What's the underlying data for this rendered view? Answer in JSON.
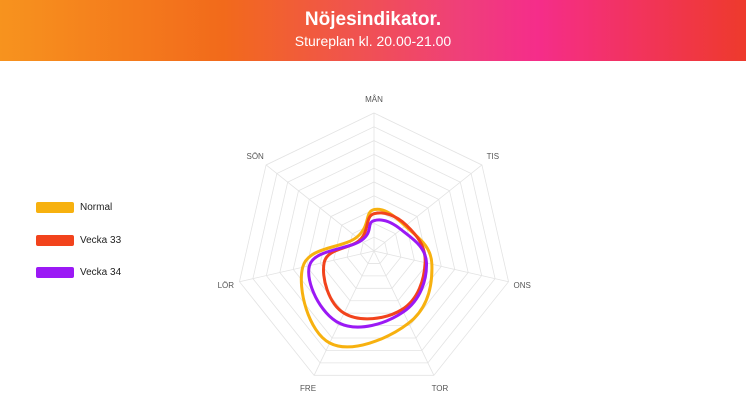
{
  "header": {
    "title": "Nöjesindikator.",
    "subtitle": "Stureplan kl. 20.00-21.00"
  },
  "colors": {
    "header_gradient": [
      "#f7931e",
      "#f26a1b",
      "#ef3f7a",
      "#f52d8a",
      "#ee3a2c"
    ],
    "grid": "#e3e3e3"
  },
  "chart_data": {
    "type": "radar",
    "title": "",
    "categories": [
      "MÅN",
      "TIS",
      "ONS",
      "TOR",
      "FRE",
      "LÖR",
      "SÖN"
    ],
    "rlim": [
      0,
      10
    ],
    "grid_rings": 10,
    "grid": true,
    "smooth": true,
    "legend_position": "left",
    "series": [
      {
        "name": "Normal",
        "color": "#f7b10f",
        "values": [
          3.0,
          2.9,
          4.3,
          5.8,
          7.4,
          5.3,
          1.6
        ]
      },
      {
        "name": "Vecka 33",
        "color": "#f2431c",
        "values": [
          2.7,
          3.0,
          3.8,
          4.7,
          5.0,
          3.7,
          1.3
        ]
      },
      {
        "name": "Vecka 34",
        "color": "#9b19f5",
        "values": [
          2.2,
          2.5,
          3.9,
          4.9,
          5.8,
          4.8,
          1.2
        ]
      }
    ]
  }
}
